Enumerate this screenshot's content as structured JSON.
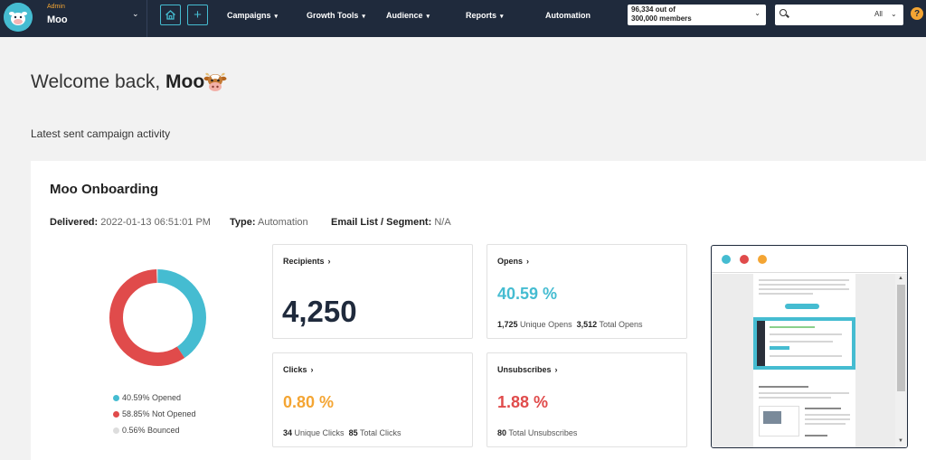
{
  "topbar": {
    "account": {
      "role": "Admin",
      "name": "Moo"
    },
    "icons": {
      "home": "home-icon",
      "add": "plus-icon",
      "help": "help-icon",
      "search": "search-icon"
    },
    "nav": [
      {
        "label": "Campaigns",
        "dropdown": true
      },
      {
        "label": "Growth Tools",
        "dropdown": true
      },
      {
        "label": "Audience",
        "dropdown": true
      },
      {
        "label": "Reports",
        "dropdown": true
      },
      {
        "label": "Automation",
        "dropdown": false
      }
    ],
    "members": {
      "line1": "96,334 out of",
      "line2": "300,000 members"
    },
    "search": {
      "scope": "All",
      "placeholder": ""
    },
    "help_label": "?"
  },
  "welcome": {
    "prefix": "Welcome back,",
    "name": "Moo",
    "emoji": "cow-face-icon"
  },
  "section_title": "Latest sent campaign activity",
  "campaign": {
    "name": "Moo Onboarding",
    "delivered_label": "Delivered:",
    "delivered_value": "2022-01-13 06:51:01 PM",
    "type_label": "Type:",
    "type_value": "Automation",
    "list_label": "Email List / Segment:",
    "list_value": "N/A"
  },
  "donut": {
    "segments": [
      {
        "label": "40.59% Opened",
        "value": 40.59,
        "color": "#45bcd1"
      },
      {
        "label": "58.85% Not Opened",
        "value": 58.85,
        "color": "#e04b4b"
      },
      {
        "label": "0.56% Bounced",
        "value": 0.56,
        "color": "#dddddd"
      }
    ]
  },
  "stats": {
    "recipients": {
      "title": "Recipients",
      "value": "4,250"
    },
    "opens": {
      "title": "Opens",
      "pct": "40.59 %",
      "color": "#45bcd1",
      "n1": "1,725",
      "l1": "Unique Opens",
      "n2": "3,512",
      "l2": "Total Opens"
    },
    "clicks": {
      "title": "Clicks",
      "pct": "0.80 %",
      "color": "#f4a533",
      "n1": "34",
      "l1": "Unique Clicks",
      "n2": "85",
      "l2": "Total Clicks"
    },
    "unsubscribes": {
      "title": "Unsubscribes",
      "pct": "1.88 %",
      "color": "#e04b4b",
      "n1": "80",
      "l1": "Total Unsubscribes"
    }
  },
  "preview": {
    "dot_colors": [
      "#45bcd1",
      "#e04b4b",
      "#f4a533"
    ]
  },
  "arrow_glyph": "›"
}
